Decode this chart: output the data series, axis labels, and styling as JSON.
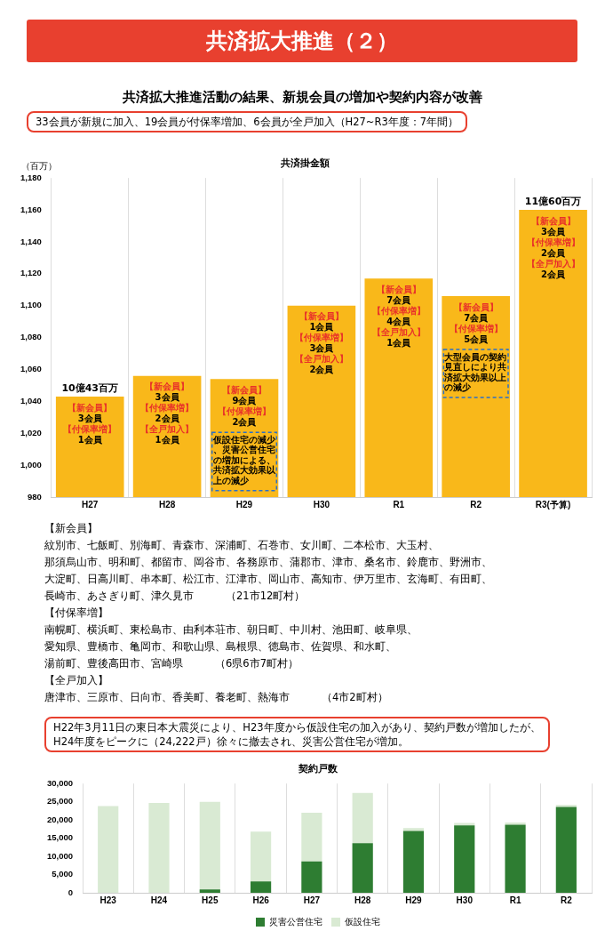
{
  "chart_data": [
    {
      "type": "other",
      "title": "共済拡大推進（２）",
      "subtitle": "共済拡大推進活動の結果、新規会員の増加や契約内容が改善",
      "annotations": [
        "33会員が新規に加入、19会員が付保率増加、6会員が全戸加入（H27~R3年度：7年間）"
      ]
    },
    {
      "type": "bar",
      "title": "共済掛金額",
      "ylabel": "（百万）",
      "categories": [
        "H27",
        "H28",
        "H29",
        "H30",
        "R1",
        "R2",
        "R3(予算)"
      ],
      "values": [
        1043,
        1056,
        1054,
        1100,
        1117,
        1106,
        1160
      ],
      "color": "#f9b81a",
      "ylim": [
        980,
        1180
      ],
      "yticks": [
        {
          "value": 980,
          "label": "980"
        },
        {
          "value": 1000,
          "label": "1,000"
        },
        {
          "value": 1020,
          "label": "1,020"
        },
        {
          "value": 1040,
          "label": "1,040"
        },
        {
          "value": 1060,
          "label": "1,060"
        },
        {
          "value": 1080,
          "label": "1,080"
        },
        {
          "value": 1100,
          "label": "1,100"
        },
        {
          "value": 1120,
          "label": "1,120"
        },
        {
          "value": 1140,
          "label": "1,140"
        },
        {
          "value": 1160,
          "label": "1,160"
        },
        {
          "value": 1180,
          "label": "1,180"
        }
      ],
      "grid": "x",
      "annotations": [
        {
          "text": "10億43百万",
          "x": "H27",
          "y": 1043
        },
        "【新会員】3会員【付保率増】1会員",
        "【新会員】3会員【付保率増】2会員【全戸加入】1会員",
        "【新会員】9会員【付保率増】2会員",
        "仮設住宅の減少、災害公営住宅の増加による、共済拡大効果以上の減少",
        "【新会員】1会員【付保率増】3会員【全戸加入】2会員",
        "【新会員】7会員【付保率増】4会員【全戸加入】1会員",
        "【新会員】7会員【付保率増】5会員",
        "大型会員の契約見直しにより共済拡大効果以上の減少",
        {
          "text": "11億60百万",
          "x": "R3(予算)",
          "y": 1160
        },
        "【新会員】3会員【付保率増】2会員【全戸加入】2会員"
      ]
    },
    {
      "type": "other",
      "annotations": [
        "【新会員】",
        "紋別市、七飯町、別海町、青森市、深浦町、石巻市、女川町、二本松市、大玉村、",
        "那須烏山市、明和町、都留市、岡谷市、各務原市、蒲郡市、津市、桑名市、鈴鹿市、野洲市、",
        "大淀町、日高川町、串本町、松江市、江津市、岡山市、高知市、伊万里市、玄海町、有田町、",
        "長崎市、あさぎり町、津久見市　　　（21市12町村）",
        "【付保率増】",
        "南幌町、横浜町、東松島市、由利本荘市、朝日町、中川村、池田町、岐阜県、",
        "愛知県、豊橋市、亀岡市、和歌山県、島根県、徳島市、佐賀県、和水町、",
        "湯前町、豊後高田市、宮崎県　　　（6県6市7町村）",
        "【全戸加入】",
        "唐津市、三原市、日向市、香美町、養老町、熱海市　　　（4市2町村）"
      ]
    },
    {
      "type": "other",
      "annotations": [
        "H22年3月11日の東日本大震災により、H23年度から仮設住宅の加入があり、契約戸数が増加したが、",
        "H24年度をピークに（24,222戸）徐々に撤去され、災害公営住宅が増加。"
      ]
    },
    {
      "type": "bar",
      "title": "契約戸数",
      "stacked": true,
      "categories": [
        "H23",
        "H24",
        "H25",
        "H26",
        "H27",
        "H28",
        "H29",
        "H30",
        "R1",
        "R2"
      ],
      "series": [
        {
          "name": "災害公営住宅",
          "color": "#2e7d32",
          "values": [
            0,
            0,
            900,
            3100,
            8600,
            13600,
            17000,
            18500,
            18700,
            23600
          ]
        },
        {
          "name": "仮設住宅",
          "color": "#d9ead3",
          "values": [
            23800,
            24700,
            24100,
            13700,
            13400,
            13800,
            800,
            700,
            600,
            500
          ]
        }
      ],
      "ylim": [
        0,
        30000
      ],
      "yticks": [
        {
          "value": 0,
          "label": "0"
        },
        {
          "value": 5000,
          "label": "5,000"
        },
        {
          "value": 10000,
          "label": "10,000"
        },
        {
          "value": 15000,
          "label": "15,000"
        },
        {
          "value": 20000,
          "label": "20,000"
        },
        {
          "value": 25000,
          "label": "25,000"
        },
        {
          "value": 30000,
          "label": "30,000"
        }
      ],
      "grid": "x",
      "legend": "bottom"
    }
  ]
}
